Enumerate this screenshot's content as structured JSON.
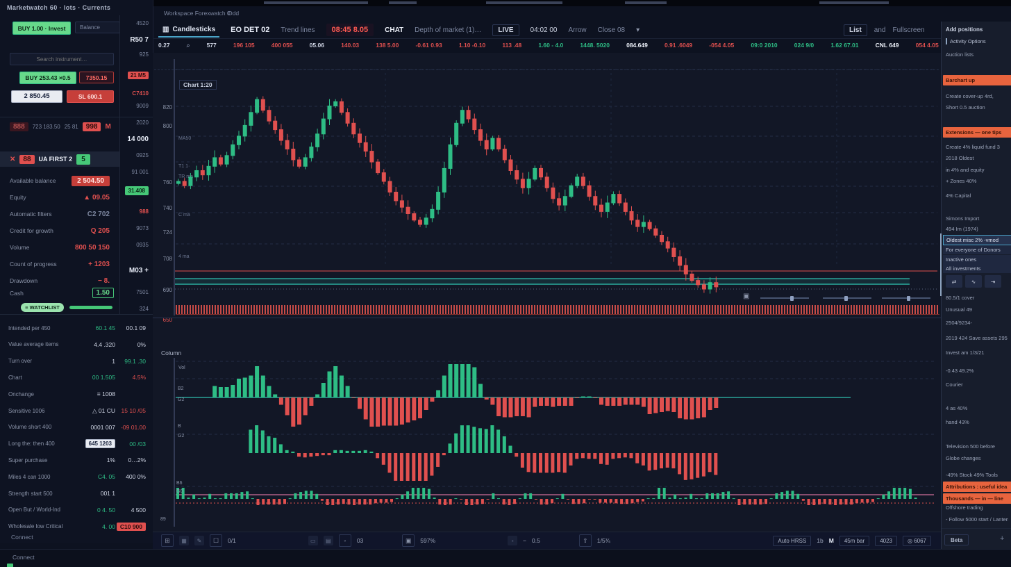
{
  "menu": {
    "left": "Workspace Forexwatch 0",
    "right": "Odd"
  },
  "sidebar": {
    "header": "Marketwatch 60 · lots · Currents",
    "buy_button": "BUY 1.00 · Invest",
    "balance_input": "Balance",
    "search_placeholder": "Search instrument…",
    "order_buttons": {
      "buy": "BUY 253.43 ×0.5",
      "sell": "7350.15",
      "qty": "2 850.45",
      "stop": "SL 600.1"
    },
    "orders_row": {
      "badge": "888",
      "text": "723 183.50",
      "dim": "25 81",
      "alert": "998",
      "flag": "M"
    },
    "position_row": {
      "close": "✕",
      "badge": "88",
      "title": "UA FIRST 2",
      "count": "5"
    },
    "stats": [
      {
        "label": "Available balance",
        "value": "2 504.50",
        "style": "redbox"
      },
      {
        "label": "Equity",
        "value": "▲ 09.05",
        "style": "red"
      },
      {
        "label": "Automatic filters",
        "value": "C2 702",
        "style": "dim"
      },
      {
        "label": "Credit for growth",
        "value": "Q 205",
        "style": "red"
      },
      {
        "label": "Volume",
        "value": "800 50 150",
        "style": "red"
      },
      {
        "label": "Count of progress",
        "value": "+ 1203",
        "style": "red"
      },
      {
        "label": "Drawdown",
        "value": "− 8.",
        "style": "red"
      }
    ],
    "cash": {
      "label": "Cash",
      "value": "1.50"
    },
    "watchlist_button": "≡ WATCHLIST",
    "table": [
      {
        "l": "Intended per 450",
        "v1": "60.1 45",
        "c1": "g",
        "v2": "00.1 09",
        "c2": "w"
      },
      {
        "l": "Value average items",
        "v1": "4.4 .320",
        "c1": "w",
        "v2": "0%",
        "c2": "w"
      },
      {
        "l": "Turn over",
        "v1": "1",
        "c1": "w",
        "v2": "99.1 .30",
        "c2": "g"
      },
      {
        "l": "Chart",
        "v1": "00 1.505",
        "c1": "g",
        "v2": "4.5%",
        "c2": "r"
      },
      {
        "l": "Onchange",
        "v1": "≡ 1008",
        "c1": "w",
        "v2": "",
        "c2": "w"
      },
      {
        "l": "Sensitive 1006",
        "v1": "△ 01 CU",
        "c1": "w",
        "v2": "15 10 /05",
        "c2": "r"
      },
      {
        "l": "Volume short 400",
        "v1": "0001 007",
        "c1": "w",
        "v2": "-09 01.00",
        "c2": "r"
      },
      {
        "l": "Long the: then 400",
        "v1": "645 1203",
        "c1": "box",
        "v2": "00 /03",
        "c2": "g"
      },
      {
        "l": "Super purchase",
        "v1": "1%",
        "c1": "w",
        "v2": "0…2%",
        "c2": "w"
      },
      {
        "l": "Miles 4 can 1000",
        "v1": "C4. 05",
        "c1": "g",
        "v2": "400 0%",
        "c2": "w"
      },
      {
        "l": "Strength start 500",
        "v1": "001 1",
        "c1": "w",
        "v2": "",
        "c2": "w"
      },
      {
        "l": "Open But / World-Ind",
        "v1": "0 4. 50",
        "c1": "g",
        "v2": "4 500",
        "c2": "w"
      },
      {
        "l": "Wholesale low Critical",
        "v1": "4. 00",
        "c1": "g",
        "v2": "C10 900",
        "c2": "rb"
      }
    ],
    "subcolumn": [
      {
        "t": "4520",
        "k": "dim"
      },
      {
        "t": "R50 7",
        "k": "big"
      },
      {
        "t": "925",
        "k": "dim"
      },
      {
        "t": "21 M5",
        "k": "red"
      },
      {
        "t": "C7410",
        "k": "redd"
      },
      {
        "t": "9009",
        "k": "dim"
      },
      {
        "t": "2020",
        "k": "dim"
      },
      {
        "t": "14 000",
        "k": "big"
      },
      {
        "t": "0925",
        "k": "dim"
      },
      {
        "t": "91 001",
        "k": "dim"
      },
      {
        "t": "31.408",
        "k": "gbadge"
      },
      {
        "t": "988",
        "k": "redd"
      },
      {
        "t": "9073",
        "k": "dim"
      },
      {
        "t": "0935",
        "k": "dim"
      },
      {
        "t": "M03 +",
        "k": "big"
      },
      {
        "t": "7501",
        "k": "dim"
      },
      {
        "t": "324",
        "k": "dim"
      }
    ],
    "connect": "Connect"
  },
  "toolbar": {
    "items": [
      {
        "t": "Candlesticks",
        "k": "tab"
      },
      {
        "t": "EO DET 02",
        "k": "sym"
      },
      {
        "t": "Trend lines",
        "k": "dim"
      },
      {
        "t": "08:45 8.05",
        "k": "price"
      },
      {
        "t": "CHAT",
        "k": "bold"
      },
      {
        "t": "Depth of market (1)…",
        "k": "dim"
      },
      {
        "t": "LIVE",
        "k": "boxed"
      },
      {
        "t": "04:02 00",
        "k": "val"
      },
      {
        "t": "Arrow",
        "k": "dim"
      },
      {
        "t": "Close 08",
        "k": "dim"
      },
      {
        "t": "▾",
        "k": "caret"
      }
    ],
    "right": [
      {
        "t": "List",
        "k": "boxed"
      },
      {
        "t": "and",
        "k": "dim"
      },
      {
        "t": "Fullscreen",
        "k": "dim"
      }
    ]
  },
  "ticker": [
    {
      "t": "0.27",
      "c": "w"
    },
    {
      "t": "⌕",
      "c": "dim"
    },
    {
      "t": "577",
      "c": "w"
    },
    {
      "t": "196 105",
      "c": "r"
    },
    {
      "t": "400 055",
      "c": "r"
    },
    {
      "t": "05.06",
      "c": "w"
    },
    {
      "t": "140.03",
      "c": "r"
    },
    {
      "t": "138 5.00",
      "c": "r"
    },
    {
      "t": "-0.61 0.93",
      "c": "r"
    },
    {
      "t": "1.10 -0.10",
      "c": "r"
    },
    {
      "t": "113 .48",
      "c": "r"
    },
    {
      "t": "1.60 - 4.0",
      "c": "g"
    },
    {
      "t": "1448. 5020",
      "c": "g"
    },
    {
      "t": "084.649",
      "c": "b"
    },
    {
      "t": "0.91 .6049",
      "c": "r"
    },
    {
      "t": "-054 4.05",
      "c": "r"
    },
    {
      "t": "09:0 2010",
      "c": "g"
    },
    {
      "t": "024 9/0",
      "c": "g"
    },
    {
      "t": "1.62 67.01",
      "c": "g"
    },
    {
      "t": "CNL 649",
      "c": "b"
    },
    {
      "t": "054 4.05",
      "c": "r"
    }
  ],
  "chart": {
    "title": "Chart 1:20",
    "axis_labels": [
      "820",
      "800",
      "760",
      "740",
      "724",
      "708",
      "690",
      "650"
    ],
    "legends": [
      "MA50",
      "T1 1·",
      "TR ma",
      "C ma",
      "4 ma"
    ],
    "panel_title": "Column",
    "panel_axis": [
      "Vol",
      "B2",
      "G2",
      "B",
      "G2",
      "B6",
      "G0",
      "89"
    ]
  },
  "chart_data": {
    "type": "candlestick",
    "title": "EO DET 02 — main price panel with volume strip and 3 momentum sub-panels",
    "ylim": [
      0,
      100
    ],
    "closes": [
      55,
      53,
      57,
      60,
      58,
      62,
      66,
      63,
      67,
      72,
      76,
      81,
      87,
      93,
      88,
      83,
      79,
      74,
      70,
      65,
      62,
      66,
      71,
      77,
      84,
      90,
      92,
      87,
      82,
      77,
      73,
      69,
      64,
      59,
      55,
      50,
      46,
      43,
      40,
      37,
      35,
      38,
      42,
      50,
      61,
      72,
      82,
      88,
      84,
      79,
      74,
      70,
      75,
      70,
      65,
      60,
      56,
      52,
      56,
      61,
      57,
      52,
      47,
      44,
      48,
      53,
      57,
      53,
      48,
      44,
      41,
      45,
      49,
      45,
      41,
      37,
      34,
      36,
      33,
      30,
      27,
      24,
      20,
      16,
      12,
      9,
      7,
      5,
      8,
      6
    ],
    "overlay_lines": {
      "red_level": "650",
      "teal_band": "support zone"
    }
  },
  "bottombar": {
    "left": [
      {
        "t": "⊞",
        "k": "ic"
      },
      {
        "t": "▦",
        "k": "ic2"
      },
      {
        "t": "✎",
        "k": "ic2"
      },
      {
        "t": "☐",
        "k": "ic"
      },
      {
        "t": "0/1",
        "k": "tx"
      },
      {
        "t": "",
        "k": "sp"
      },
      {
        "t": "",
        "k": "sp"
      },
      {
        "t": "▭",
        "k": "ic2"
      },
      {
        "t": "▤",
        "k": "ic2"
      },
      {
        "t": "◦",
        "k": "ic"
      },
      {
        "t": "03",
        "k": "tx"
      },
      {
        "t": "",
        "k": "sp"
      },
      {
        "t": "▣",
        "k": "ic"
      },
      {
        "t": "597%",
        "k": "tx"
      },
      {
        "t": "",
        "k": "sp"
      },
      {
        "t": "",
        "k": "sp"
      },
      {
        "t": "▫",
        "k": "ic2"
      },
      {
        "t": "−",
        "k": "tx"
      },
      {
        "t": "0.5",
        "k": "tx"
      },
      {
        "t": "",
        "k": "sp"
      },
      {
        "t": "⇪",
        "k": "ic"
      },
      {
        "t": "1/5¾",
        "k": "tx"
      }
    ],
    "right": [
      {
        "t": "Auto HRSS",
        "k": "btn"
      },
      {
        "t": "1b",
        "k": "tx"
      },
      {
        "t": "M",
        "k": "bold"
      },
      {
        "t": "45m bar",
        "k": "btn"
      },
      {
        "t": "4023",
        "k": "btn"
      },
      {
        "t": "◎ 6067",
        "k": "btn"
      }
    ]
  },
  "rightbar": {
    "items": [
      {
        "k": "header",
        "t": "Add positions"
      },
      {
        "k": "sub",
        "t": "Activity Options"
      },
      {
        "k": "item",
        "t": "Auction lists"
      },
      {
        "k": "orange",
        "t": "Barchart up"
      },
      {
        "k": "item",
        "t": "Create cover-up 4rd,"
      },
      {
        "k": "item",
        "t": "Short 0.5 auction"
      },
      {
        "k": "orange",
        "t": "Extensions — one tips"
      },
      {
        "k": "item",
        "t": "Create 4% liquid fund 3"
      },
      {
        "k": "item",
        "t": "2018 Oldest"
      },
      {
        "k": "item",
        "t": "in 4% and equity"
      },
      {
        "k": "item",
        "t": "+ Zones 40%"
      },
      {
        "k": "item",
        "t": "4% Capital"
      },
      {
        "k": "item",
        "t": "Simons Import"
      },
      {
        "k": "item",
        "t": "494 Im (1974)"
      },
      {
        "k": "sel",
        "t": "Oldest misc 2% -vmod"
      },
      {
        "k": "row",
        "t": "For everyone of Donors"
      },
      {
        "k": "row",
        "t": "Inactive ones"
      },
      {
        "k": "row",
        "t": "All investments"
      },
      {
        "k": "icons",
        "t": "⇄|∿|⇥"
      },
      {
        "k": "item",
        "t": "80.5/1 cover"
      },
      {
        "k": "item",
        "t": "Unusual 49"
      },
      {
        "k": "item",
        "t": "2504/9234-"
      },
      {
        "k": "item",
        "t": "2019 424 Save assets 295"
      },
      {
        "k": "item",
        "t": "Invest am 1/3/21"
      },
      {
        "k": "item",
        "t": "-0.43 49.2%"
      },
      {
        "k": "item",
        "t": "Courier"
      },
      {
        "k": "item",
        "t": "4 as 40%"
      },
      {
        "k": "item",
        "t": "hand 43%"
      },
      {
        "k": "item",
        "t": "Television 500 before"
      },
      {
        "k": "item",
        "t": "Globe changes"
      },
      {
        "k": "item",
        "t": "-49% Stock 49% Tools"
      },
      {
        "k": "orange",
        "t": "Attributions : useful idea"
      },
      {
        "k": "orange",
        "t": "Thousands — in — line"
      },
      {
        "k": "item",
        "t": "Offshore trading"
      },
      {
        "k": "item",
        "t": "- Follow 5000 start / Lantern"
      }
    ],
    "footer_button": "Beta",
    "add_button": "+"
  },
  "footer": {
    "connect": "Connect"
  }
}
